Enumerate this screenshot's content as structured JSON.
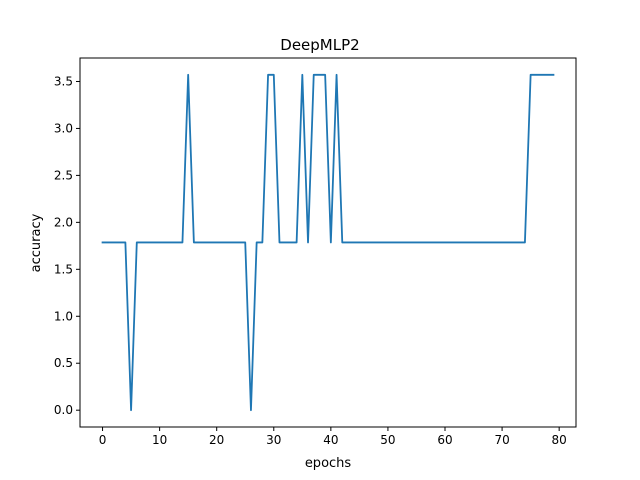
{
  "chart_data": {
    "type": "line",
    "title": "DeepMLP2",
    "xlabel": "epochs",
    "ylabel": "accuracy",
    "xlim": [
      -3.95,
      82.95
    ],
    "ylim": [
      -0.179,
      3.75
    ],
    "xticks": [
      0,
      10,
      20,
      30,
      40,
      50,
      60,
      70,
      80
    ],
    "xtick_labels": [
      "0",
      "10",
      "20",
      "30",
      "40",
      "50",
      "60",
      "70",
      "80"
    ],
    "yticks": [
      0.0,
      0.5,
      1.0,
      1.5,
      2.0,
      2.5,
      3.0,
      3.5
    ],
    "ytick_labels": [
      "0.0",
      "0.5",
      "1.0",
      "1.5",
      "2.0",
      "2.5",
      "3.0",
      "3.5"
    ],
    "grid": false,
    "series": [
      {
        "color": "#1f77b4",
        "x": [
          0,
          1,
          2,
          3,
          4,
          5,
          6,
          7,
          8,
          9,
          10,
          11,
          12,
          13,
          14,
          15,
          16,
          17,
          18,
          19,
          20,
          21,
          22,
          23,
          24,
          25,
          26,
          27,
          28,
          29,
          30,
          31,
          32,
          33,
          34,
          35,
          36,
          37,
          38,
          39,
          40,
          41,
          42,
          43,
          44,
          45,
          46,
          47,
          48,
          49,
          50,
          51,
          52,
          53,
          54,
          55,
          56,
          57,
          58,
          59,
          60,
          61,
          62,
          63,
          64,
          65,
          66,
          67,
          68,
          69,
          70,
          71,
          72,
          73,
          74,
          75,
          76,
          77,
          78,
          79
        ],
        "y": [
          1.786,
          1.786,
          1.786,
          1.786,
          1.786,
          0.0,
          1.786,
          1.786,
          1.786,
          1.786,
          1.786,
          1.786,
          1.786,
          1.786,
          1.786,
          3.571,
          1.786,
          1.786,
          1.786,
          1.786,
          1.786,
          1.786,
          1.786,
          1.786,
          1.786,
          1.786,
          0.0,
          1.786,
          1.786,
          3.571,
          3.571,
          1.786,
          1.786,
          1.786,
          1.786,
          3.571,
          1.786,
          3.571,
          3.571,
          3.571,
          1.786,
          3.571,
          1.786,
          1.786,
          1.786,
          1.786,
          1.786,
          1.786,
          1.786,
          1.786,
          1.786,
          1.786,
          1.786,
          1.786,
          1.786,
          1.786,
          1.786,
          1.786,
          1.786,
          1.786,
          1.786,
          1.786,
          1.786,
          1.786,
          1.786,
          1.786,
          1.786,
          1.786,
          1.786,
          1.786,
          1.786,
          1.786,
          1.786,
          1.786,
          1.786,
          3.571,
          3.571,
          3.571,
          3.571,
          3.571
        ]
      }
    ]
  }
}
